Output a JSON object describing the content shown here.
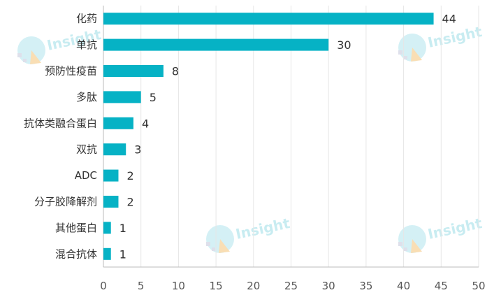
{
  "chart_data": {
    "type": "bar",
    "orientation": "horizontal",
    "categories": [
      "化药",
      "单抗",
      "预防性疫苗",
      "多肽",
      "抗体类融合蛋白",
      "双抗",
      "ADC",
      "分子胶降解剂",
      "其他蛋白",
      "混合抗体"
    ],
    "values": [
      44,
      30,
      8,
      5,
      4,
      3,
      2,
      2,
      1,
      1
    ],
    "title": "",
    "xlabel": "",
    "ylabel": "",
    "xlim": [
      0,
      50
    ],
    "xticks": [
      0,
      5,
      10,
      15,
      20,
      25,
      30,
      35,
      40,
      45,
      50
    ],
    "grid": "vertical",
    "legend": "none",
    "colors": {
      "bar": "#06b2c5",
      "grid": "#e6e6e6",
      "axis": "#bbbbbb"
    }
  },
  "watermark": {
    "text": "Insight",
    "colors": {
      "text": "#bfe9ef",
      "circle": "#cdeef4",
      "accent": "#f8d9a8",
      "blocks": "#d9dbe8"
    }
  }
}
